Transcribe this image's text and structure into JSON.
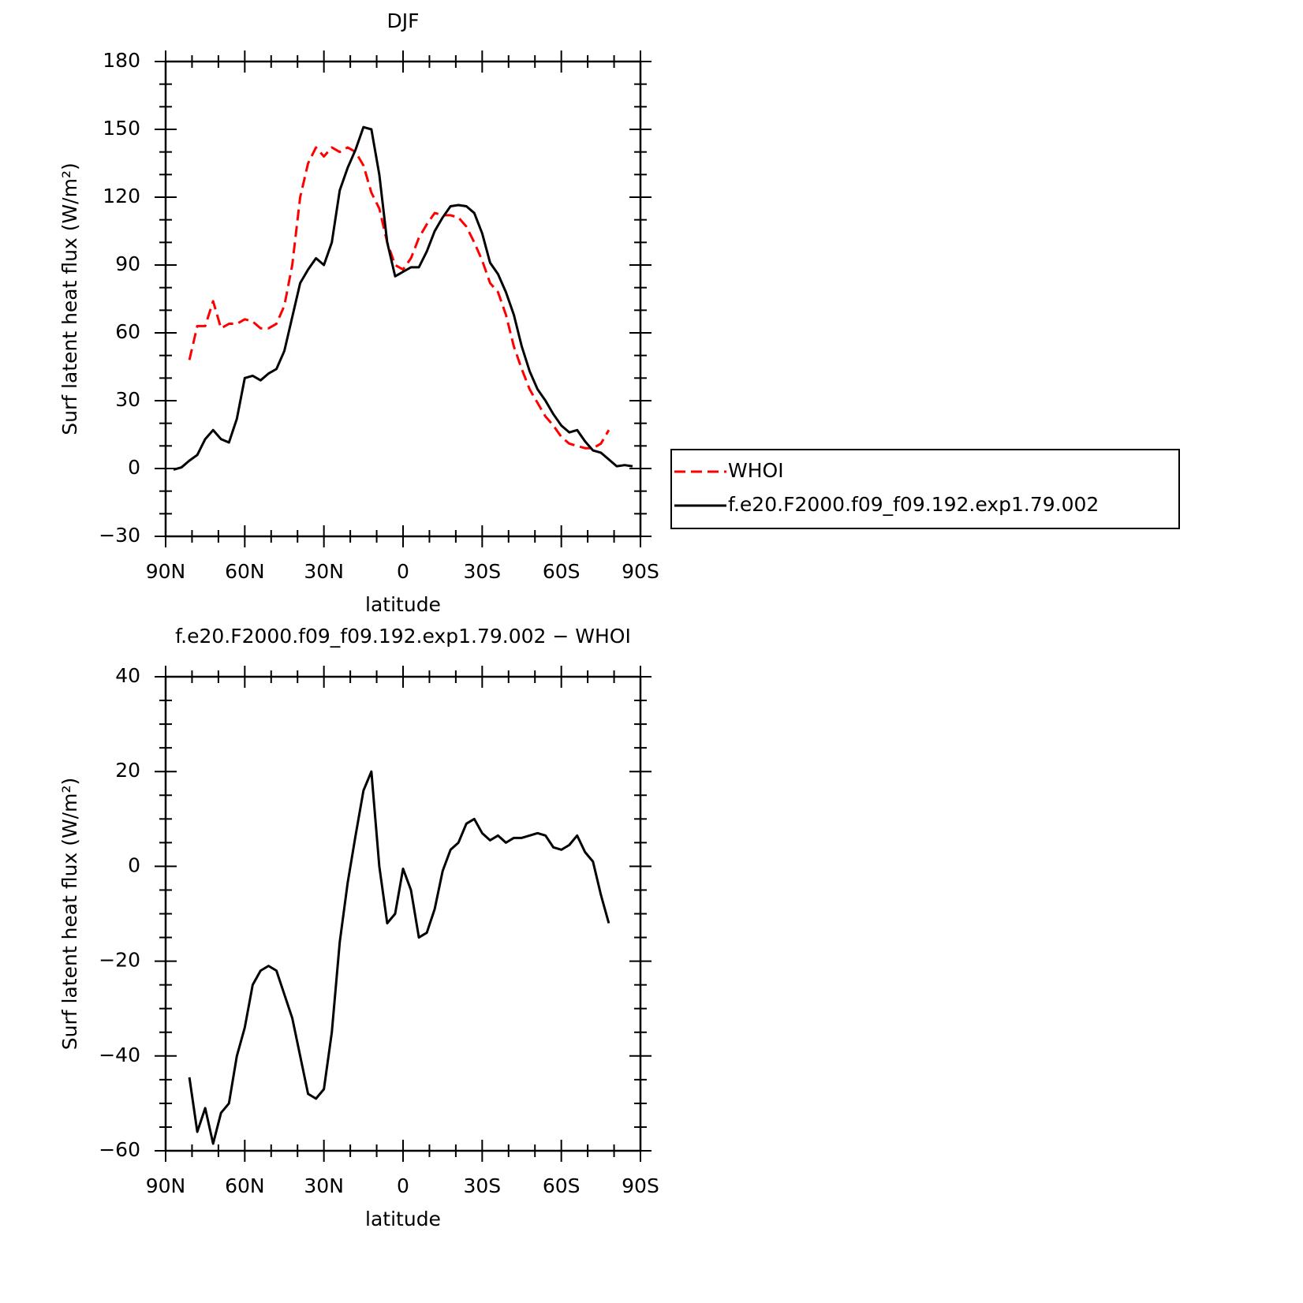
{
  "chart_data": [
    {
      "type": "line",
      "title": "DJF",
      "xlabel": "latitude",
      "ylabel": "Surf latent heat flux (W/m²)",
      "x": [
        87,
        84,
        81,
        78,
        75,
        72,
        69,
        66,
        63,
        60,
        57,
        54,
        51,
        48,
        45,
        42,
        39,
        36,
        33,
        30,
        27,
        24,
        21,
        18,
        15,
        12,
        9,
        6,
        3,
        0,
        -3,
        -6,
        -9,
        -12,
        -15,
        -18,
        -21,
        -24,
        -27,
        -30,
        -33,
        -36,
        -39,
        -42,
        -45,
        -48,
        -51,
        -54,
        -57,
        -60,
        -63,
        -66,
        -69,
        -72,
        -75,
        -78,
        -81,
        -84,
        -87
      ],
      "series": [
        {
          "name": "WHOI",
          "color": "#ff0000",
          "style": "dashed",
          "values": [
            null,
            null,
            48,
            63,
            63,
            74,
            62,
            64,
            64,
            66,
            65,
            62,
            62,
            64,
            72,
            90,
            120,
            135,
            142,
            138,
            142,
            140,
            142,
            140,
            134,
            122,
            115,
            100,
            90,
            88,
            93,
            102,
            108,
            113,
            112,
            112,
            111,
            107,
            100,
            92,
            82,
            78,
            68,
            54,
            44,
            35,
            29,
            23,
            19,
            14,
            11,
            10,
            9,
            9,
            11,
            17,
            null,
            null,
            null
          ]
        },
        {
          "name": "f.e20.F2000.f09_f09.192.exp1.79.002",
          "color": "#000000",
          "style": "solid",
          "values": [
            -0.5,
            0.5,
            3.5,
            6,
            13,
            17,
            13,
            11.5,
            22,
            40,
            41,
            39,
            42,
            44,
            52,
            67,
            82,
            88,
            93,
            90,
            100,
            123,
            133,
            141,
            151,
            150,
            130,
            100,
            85,
            87,
            89,
            89,
            96,
            105,
            111,
            116,
            116.5,
            116,
            113,
            104,
            91,
            86,
            78,
            68,
            54,
            43,
            35,
            30,
            24,
            19,
            16,
            17,
            12,
            8,
            7,
            4,
            1,
            1.5,
            1
          ]
        }
      ],
      "xlim": [
        90,
        -90
      ],
      "xticks": [
        {
          "value": 90,
          "label": "90N"
        },
        {
          "value": 60,
          "label": "60N"
        },
        {
          "value": 30,
          "label": "30N"
        },
        0,
        {
          "value": -30,
          "label": "30S"
        },
        {
          "value": -60,
          "label": "60S"
        },
        {
          "value": -90,
          "label": "90S"
        }
      ],
      "ylim": [
        -30,
        180
      ],
      "yticks": [
        {
          "value": -30,
          "label": "−30"
        },
        0,
        30,
        60,
        90,
        120,
        150,
        180
      ],
      "legend": "right"
    },
    {
      "type": "line",
      "title": "f.e20.F2000.f09_f09.192.exp1.79.002 − WHOI",
      "xlabel": "latitude",
      "ylabel": "Surf latent heat flux (W/m²)",
      "x": [
        87,
        84,
        81,
        78,
        75,
        72,
        69,
        66,
        63,
        60,
        57,
        54,
        51,
        48,
        45,
        42,
        39,
        36,
        33,
        30,
        27,
        24,
        21,
        18,
        15,
        12,
        9,
        6,
        3,
        0,
        -3,
        -6,
        -9,
        -12,
        -15,
        -18,
        -21,
        -24,
        -27,
        -30,
        -33,
        -36,
        -39,
        -42,
        -45,
        -48,
        -51,
        -54,
        -57,
        -60,
        -63,
        -66,
        -69,
        -72,
        -75,
        -78,
        -81,
        -84,
        -87
      ],
      "series": [
        {
          "color": "#000000",
          "style": "solid",
          "values": [
            null,
            null,
            -44.5,
            -56,
            -51,
            -58.5,
            -52,
            -50,
            -40,
            -34,
            -25,
            -22,
            -21,
            -22,
            -27,
            -32,
            -40,
            -48,
            -49,
            -47,
            -35,
            -16,
            -3.5,
            6.5,
            16,
            20,
            0,
            -12,
            -10,
            -0.5,
            -5,
            -15,
            -14,
            -9,
            -1,
            3.5,
            5,
            9,
            10,
            7,
            5.5,
            6.5,
            5,
            6,
            6,
            6.5,
            7,
            6.5,
            4,
            3.5,
            4.5,
            6.5,
            3,
            1,
            -6,
            -12,
            null,
            null,
            null
          ]
        }
      ],
      "xlim": [
        90,
        -90
      ],
      "xticks": [
        {
          "value": 90,
          "label": "90N"
        },
        {
          "value": 60,
          "label": "60N"
        },
        {
          "value": 30,
          "label": "30N"
        },
        0,
        {
          "value": -30,
          "label": "30S"
        },
        {
          "value": -60,
          "label": "60S"
        },
        {
          "value": -90,
          "label": "90S"
        }
      ],
      "ylim": [
        -60,
        40
      ],
      "yticks": [
        {
          "value": -60,
          "label": "−60"
        },
        {
          "value": -40,
          "label": "−40"
        },
        {
          "value": -20,
          "label": "−20"
        },
        0,
        20,
        40
      ]
    }
  ]
}
